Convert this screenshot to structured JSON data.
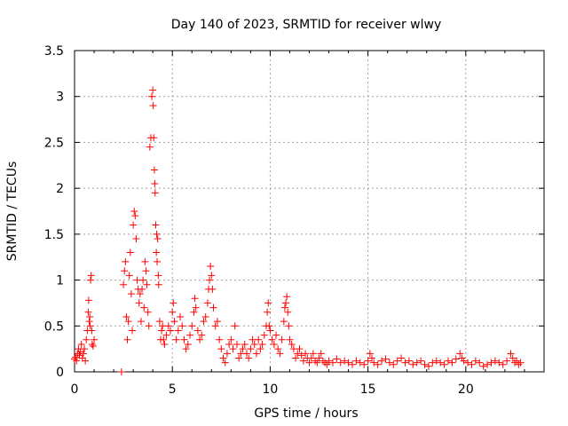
{
  "chart_data": {
    "type": "scatter",
    "title": "Day 140 of 2023, SRMTID for receiver wlwy",
    "xlabel": "GPS time / hours",
    "ylabel": "SRMTID / TECUs",
    "xlim": [
      0,
      24
    ],
    "ylim": [
      0,
      3.5
    ],
    "xticks": [
      0,
      5,
      10,
      15,
      20
    ],
    "xtick_labels": [
      "0",
      "5",
      "10",
      "15",
      "20"
    ],
    "yticks": [
      0,
      0.5,
      1,
      1.5,
      2,
      2.5,
      3,
      3.5
    ],
    "ytick_labels": [
      "0",
      "0.5",
      "1",
      "1.5",
      "2",
      "2.5",
      "3",
      "3.5"
    ],
    "grid": true,
    "marker": "+",
    "color": "#ff0000",
    "series": [
      {
        "name": "SRMTID",
        "points": [
          [
            0.0,
            0.14
          ],
          [
            0.05,
            0.16
          ],
          [
            0.1,
            0.12
          ],
          [
            0.15,
            0.2
          ],
          [
            0.2,
            0.25
          ],
          [
            0.25,
            0.18
          ],
          [
            0.3,
            0.22
          ],
          [
            0.35,
            0.3
          ],
          [
            0.4,
            0.15
          ],
          [
            0.45,
            0.2
          ],
          [
            0.5,
            0.25
          ],
          [
            0.55,
            0.12
          ],
          [
            0.6,
            0.35
          ],
          [
            0.65,
            0.45
          ],
          [
            0.7,
            0.65
          ],
          [
            0.72,
            0.78
          ],
          [
            0.75,
            0.55
          ],
          [
            0.78,
            0.6
          ],
          [
            0.8,
            0.5
          ],
          [
            0.82,
            1.0
          ],
          [
            0.85,
            1.05
          ],
          [
            0.88,
            0.45
          ],
          [
            0.9,
            0.3
          ],
          [
            0.95,
            0.28
          ],
          [
            1.0,
            0.35
          ],
          [
            2.4,
            0.0
          ],
          [
            2.5,
            0.95
          ],
          [
            2.55,
            1.1
          ],
          [
            2.6,
            1.2
          ],
          [
            2.65,
            0.6
          ],
          [
            2.7,
            0.35
          ],
          [
            2.75,
            0.55
          ],
          [
            2.8,
            1.05
          ],
          [
            2.85,
            1.3
          ],
          [
            2.9,
            0.85
          ],
          [
            2.95,
            0.45
          ],
          [
            3.0,
            1.6
          ],
          [
            3.05,
            1.75
          ],
          [
            3.1,
            1.7
          ],
          [
            3.15,
            1.45
          ],
          [
            3.2,
            1.0
          ],
          [
            3.25,
            0.9
          ],
          [
            3.3,
            0.75
          ],
          [
            3.35,
            0.85
          ],
          [
            3.4,
            0.55
          ],
          [
            3.45,
            0.9
          ],
          [
            3.5,
            1.0
          ],
          [
            3.55,
            0.7
          ],
          [
            3.6,
            1.2
          ],
          [
            3.65,
            1.1
          ],
          [
            3.7,
            0.95
          ],
          [
            3.75,
            0.65
          ],
          [
            3.8,
            0.5
          ],
          [
            3.85,
            2.45
          ],
          [
            3.9,
            2.55
          ],
          [
            3.95,
            3.0
          ],
          [
            4.0,
            3.07
          ],
          [
            4.02,
            2.9
          ],
          [
            4.05,
            2.55
          ],
          [
            4.08,
            2.2
          ],
          [
            4.1,
            2.05
          ],
          [
            4.12,
            1.95
          ],
          [
            4.15,
            1.6
          ],
          [
            4.18,
            1.3
          ],
          [
            4.2,
            1.5
          ],
          [
            4.22,
            1.2
          ],
          [
            4.25,
            1.45
          ],
          [
            4.28,
            1.05
          ],
          [
            4.3,
            0.95
          ],
          [
            4.35,
            0.55
          ],
          [
            4.4,
            0.35
          ],
          [
            4.45,
            0.45
          ],
          [
            4.5,
            0.5
          ],
          [
            4.55,
            0.35
          ],
          [
            4.6,
            0.3
          ],
          [
            4.7,
            0.4
          ],
          [
            4.8,
            0.5
          ],
          [
            4.9,
            0.45
          ],
          [
            5.0,
            0.65
          ],
          [
            5.05,
            0.75
          ],
          [
            5.1,
            0.55
          ],
          [
            5.2,
            0.35
          ],
          [
            5.3,
            0.45
          ],
          [
            5.4,
            0.6
          ],
          [
            5.5,
            0.5
          ],
          [
            5.6,
            0.35
          ],
          [
            5.7,
            0.25
          ],
          [
            5.8,
            0.3
          ],
          [
            5.9,
            0.4
          ],
          [
            6.0,
            0.5
          ],
          [
            6.1,
            0.65
          ],
          [
            6.15,
            0.8
          ],
          [
            6.2,
            0.7
          ],
          [
            6.3,
            0.45
          ],
          [
            6.4,
            0.35
          ],
          [
            6.5,
            0.4
          ],
          [
            6.6,
            0.55
          ],
          [
            6.7,
            0.6
          ],
          [
            6.8,
            0.75
          ],
          [
            6.85,
            0.9
          ],
          [
            6.9,
            1.0
          ],
          [
            6.95,
            1.15
          ],
          [
            7.0,
            1.05
          ],
          [
            7.05,
            0.9
          ],
          [
            7.1,
            0.7
          ],
          [
            7.2,
            0.5
          ],
          [
            7.3,
            0.55
          ],
          [
            7.4,
            0.35
          ],
          [
            7.5,
            0.25
          ],
          [
            7.6,
            0.15
          ],
          [
            7.7,
            0.1
          ],
          [
            7.8,
            0.2
          ],
          [
            7.9,
            0.3
          ],
          [
            8.0,
            0.35
          ],
          [
            8.1,
            0.25
          ],
          [
            8.2,
            0.5
          ],
          [
            8.3,
            0.3
          ],
          [
            8.4,
            0.15
          ],
          [
            8.5,
            0.2
          ],
          [
            8.6,
            0.25
          ],
          [
            8.7,
            0.3
          ],
          [
            8.8,
            0.2
          ],
          [
            8.9,
            0.15
          ],
          [
            9.0,
            0.25
          ],
          [
            9.1,
            0.35
          ],
          [
            9.2,
            0.3
          ],
          [
            9.3,
            0.2
          ],
          [
            9.4,
            0.35
          ],
          [
            9.5,
            0.25
          ],
          [
            9.6,
            0.3
          ],
          [
            9.7,
            0.4
          ],
          [
            9.8,
            0.5
          ],
          [
            9.85,
            0.65
          ],
          [
            9.9,
            0.75
          ],
          [
            9.95,
            0.5
          ],
          [
            10.0,
            0.45
          ],
          [
            10.1,
            0.35
          ],
          [
            10.2,
            0.3
          ],
          [
            10.3,
            0.4
          ],
          [
            10.4,
            0.25
          ],
          [
            10.5,
            0.2
          ],
          [
            10.6,
            0.35
          ],
          [
            10.7,
            0.55
          ],
          [
            10.75,
            0.7
          ],
          [
            10.8,
            0.75
          ],
          [
            10.85,
            0.82
          ],
          [
            10.9,
            0.65
          ],
          [
            10.95,
            0.5
          ],
          [
            11.0,
            0.35
          ],
          [
            11.1,
            0.3
          ],
          [
            11.2,
            0.25
          ],
          [
            11.3,
            0.15
          ],
          [
            11.4,
            0.2
          ],
          [
            11.5,
            0.25
          ],
          [
            11.6,
            0.18
          ],
          [
            11.7,
            0.12
          ],
          [
            11.8,
            0.2
          ],
          [
            11.9,
            0.15
          ],
          [
            12.0,
            0.1
          ],
          [
            12.1,
            0.15
          ],
          [
            12.2,
            0.2
          ],
          [
            12.3,
            0.12
          ],
          [
            12.4,
            0.1
          ],
          [
            12.5,
            0.15
          ],
          [
            12.6,
            0.2
          ],
          [
            12.7,
            0.12
          ],
          [
            12.8,
            0.1
          ],
          [
            12.9,
            0.08
          ],
          [
            13.0,
            0.12
          ],
          [
            13.2,
            0.1
          ],
          [
            13.4,
            0.14
          ],
          [
            13.6,
            0.1
          ],
          [
            13.8,
            0.12
          ],
          [
            14.0,
            0.1
          ],
          [
            14.2,
            0.08
          ],
          [
            14.4,
            0.12
          ],
          [
            14.6,
            0.1
          ],
          [
            14.8,
            0.08
          ],
          [
            15.0,
            0.12
          ],
          [
            15.1,
            0.2
          ],
          [
            15.2,
            0.15
          ],
          [
            15.3,
            0.1
          ],
          [
            15.5,
            0.08
          ],
          [
            15.7,
            0.12
          ],
          [
            15.9,
            0.14
          ],
          [
            16.1,
            0.1
          ],
          [
            16.3,
            0.08
          ],
          [
            16.5,
            0.12
          ],
          [
            16.7,
            0.15
          ],
          [
            16.9,
            0.1
          ],
          [
            17.1,
            0.12
          ],
          [
            17.3,
            0.08
          ],
          [
            17.5,
            0.1
          ],
          [
            17.7,
            0.12
          ],
          [
            17.9,
            0.08
          ],
          [
            18.1,
            0.06
          ],
          [
            18.3,
            0.1
          ],
          [
            18.5,
            0.12
          ],
          [
            18.7,
            0.1
          ],
          [
            18.9,
            0.08
          ],
          [
            19.1,
            0.12
          ],
          [
            19.3,
            0.1
          ],
          [
            19.5,
            0.14
          ],
          [
            19.7,
            0.2
          ],
          [
            19.8,
            0.15
          ],
          [
            19.9,
            0.12
          ],
          [
            20.1,
            0.1
          ],
          [
            20.3,
            0.08
          ],
          [
            20.5,
            0.12
          ],
          [
            20.7,
            0.1
          ],
          [
            20.9,
            0.06
          ],
          [
            21.1,
            0.08
          ],
          [
            21.3,
            0.1
          ],
          [
            21.5,
            0.12
          ],
          [
            21.7,
            0.1
          ],
          [
            21.9,
            0.08
          ],
          [
            22.1,
            0.12
          ],
          [
            22.3,
            0.2
          ],
          [
            22.4,
            0.15
          ],
          [
            22.5,
            0.1
          ],
          [
            22.6,
            0.12
          ],
          [
            22.7,
            0.08
          ],
          [
            22.8,
            0.1
          ]
        ]
      }
    ]
  }
}
